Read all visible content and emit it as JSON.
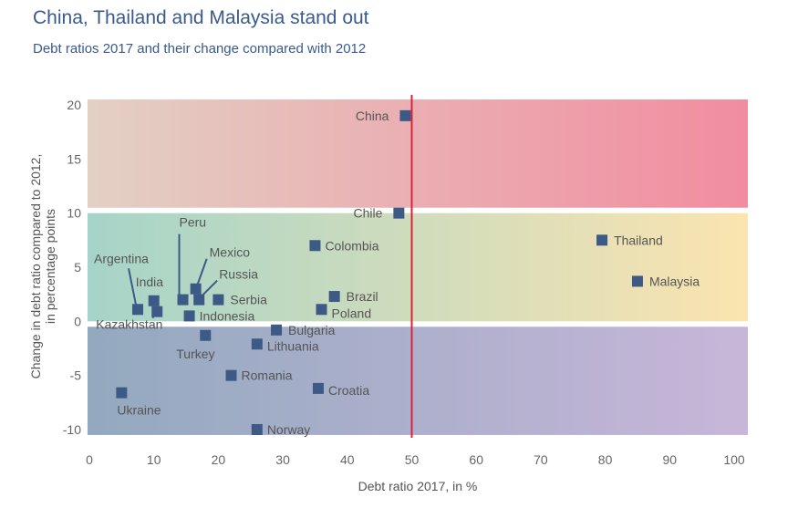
{
  "title": "China, Thailand and Malaysia stand out",
  "subtitle": "Debt ratios 2017 and their change compared with 2012",
  "chart_data": {
    "type": "scatter",
    "xlabel": "Debt ratio 2017, in %",
    "ylabel_lines": [
      "Change in debt ratio compared to 2012,",
      "in percentage points"
    ],
    "xlim": [
      0,
      100
    ],
    "ylim": [
      -10,
      20
    ],
    "xticks": [
      0,
      10,
      20,
      30,
      40,
      50,
      60,
      70,
      80,
      90,
      100
    ],
    "yticks": [
      -10,
      -5,
      0,
      5,
      10,
      15,
      20
    ],
    "vline_x": 50,
    "bands": [
      {
        "y_from": 10.5,
        "y_to": 20.5,
        "color_left": "#e3d0c4",
        "color_right": "#f28ca0"
      },
      {
        "y_from": 0,
        "y_to": 10,
        "color_left": "#a6d4c8",
        "color_right": "#fbe4b0"
      },
      {
        "y_from": -10.5,
        "y_to": -0.5,
        "color_left": "#93a9bf",
        "color_right": "#c8b6d9"
      }
    ],
    "colors": {
      "marker": "#3d5a87",
      "vline": "#d6243a",
      "leader": "#3d5a87"
    },
    "points": [
      {
        "name": "China",
        "x": 49,
        "y": 19
      },
      {
        "name": "Chile",
        "x": 48,
        "y": 10
      },
      {
        "name": "Thailand",
        "x": 79.5,
        "y": 7.5
      },
      {
        "name": "Malaysia",
        "x": 85,
        "y": 3.7
      },
      {
        "name": "Colombia",
        "x": 35,
        "y": 7
      },
      {
        "name": "Brazil",
        "x": 38,
        "y": 2.3
      },
      {
        "name": "Poland",
        "x": 36,
        "y": 1.1
      },
      {
        "name": "Argentina",
        "x": 7.5,
        "y": 1.1
      },
      {
        "name": "India",
        "x": 10,
        "y": 1.9
      },
      {
        "name": "Kazakhstan",
        "x": 10.5,
        "y": 0.9
      },
      {
        "name": "Peru",
        "x": 14.5,
        "y": 2
      },
      {
        "name": "Mexico",
        "x": 16.5,
        "y": 3
      },
      {
        "name": "Russia",
        "x": 17,
        "y": 2
      },
      {
        "name": "Serbia",
        "x": 20,
        "y": 2
      },
      {
        "name": "Indonesia",
        "x": 15.5,
        "y": 0.5
      },
      {
        "name": "Turkey",
        "x": 18,
        "y": -1.3
      },
      {
        "name": "Bulgaria",
        "x": 29,
        "y": -0.8
      },
      {
        "name": "Lithuania",
        "x": 26,
        "y": -2.1
      },
      {
        "name": "Romania",
        "x": 22,
        "y": -5
      },
      {
        "name": "Croatia",
        "x": 35.5,
        "y": -6.2
      },
      {
        "name": "Ukraine",
        "x": 5,
        "y": -6.6
      },
      {
        "name": "Norway",
        "x": 26,
        "y": -10
      }
    ]
  }
}
